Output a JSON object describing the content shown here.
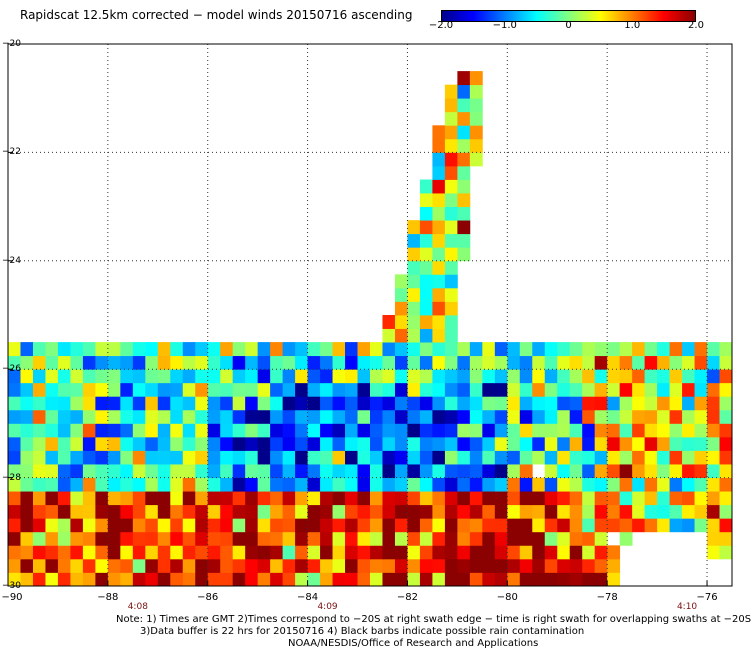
{
  "title": "Rapidscat 12.5km corrected − model winds 20150716 ascending",
  "colorbar": {
    "ticks": [
      {
        "label": "−2.0",
        "value": -2.0
      },
      {
        "label": "−1.0",
        "value": -1.0
      },
      {
        "label": "0",
        "value": 0
      },
      {
        "label": "1.0",
        "value": 1.0
      },
      {
        "label": "2.0",
        "value": 2.0
      }
    ],
    "range": [
      -2.0,
      2.0
    ],
    "colors": [
      "#00008b",
      "#0000ff",
      "#0080ff",
      "#00ffff",
      "#80ff80",
      "#ffff00",
      "#ff8000",
      "#ff0000",
      "#8b0000"
    ]
  },
  "chart_data": {
    "type": "heatmap",
    "title": "Rapidscat 12.5km corrected − model winds 20150716 ascending",
    "xlim": [
      -90,
      -75.5
    ],
    "ylim": [
      -30,
      -20
    ],
    "x_ticks": [
      {
        "label": "−90",
        "value": -90
      },
      {
        "label": "−88",
        "value": -88
      },
      {
        "label": "−86",
        "value": -86
      },
      {
        "label": "−84",
        "value": -84
      },
      {
        "label": "−82",
        "value": -82
      },
      {
        "label": "−80",
        "value": -80
      },
      {
        "label": "−78",
        "value": -78
      },
      {
        "label": "−76",
        "value": -76
      }
    ],
    "y_ticks": [
      {
        "label": "−20",
        "value": -20
      },
      {
        "label": "−22",
        "value": -22
      },
      {
        "label": "−24",
        "value": -24
      },
      {
        "label": "−26",
        "value": -26
      },
      {
        "label": "−28",
        "value": -28
      },
      {
        "label": "−30",
        "value": -30
      }
    ],
    "time_labels": [
      {
        "label": "4:08",
        "lon": -87.4
      },
      {
        "label": "4:09",
        "lon": -83.6
      },
      {
        "label": "4:10",
        "lon": -76.4
      }
    ],
    "grid": true,
    "colorbar_range": [
      -2.0,
      2.0
    ],
    "swath_regions": [
      {
        "name": "northeast arm",
        "lon_range": [
          -83.5,
          -80.4
        ],
        "lat_range": [
          -29.0,
          -20.6
        ],
        "typical_value": 0.3
      },
      {
        "name": "western fan",
        "lon_range": [
          -90.0,
          -79.5
        ],
        "lat_range": [
          -30.0,
          -25.6
        ],
        "typical_value": -0.6
      },
      {
        "name": "southern band",
        "lon_range": [
          -90.0,
          -78.0
        ],
        "lat_range": [
          -30.0,
          -28.0
        ],
        "typical_value": 1.3
      },
      {
        "name": "eastern arm",
        "lon_range": [
          -78.5,
          -75.5
        ],
        "lat_range": [
          -30.0,
          -25.4
        ],
        "typical_value": 0.4
      }
    ]
  },
  "notes": {
    "line1": "Note: 1) Times are GMT 2)Times correspond to −20S at right swath edge − time is right swath for overlapping swaths at −20S",
    "line2": "3)Data buffer is 22 hrs for 20150716 4) Black barbs indicate possible rain contamination",
    "line3": "NOAA/NESDIS/Office of Research and Applications"
  }
}
